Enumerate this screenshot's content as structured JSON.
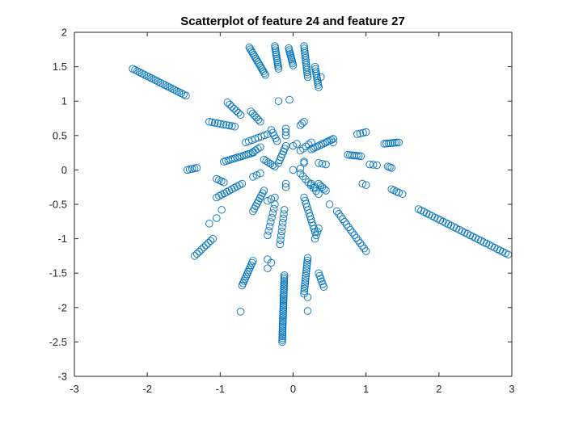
{
  "chart_data": {
    "type": "scatter",
    "title": "Scatterplot of feature 24 and feature 27",
    "xlabel": "",
    "ylabel": "",
    "xlim": [
      -3,
      3
    ],
    "ylim": [
      -3,
      2
    ],
    "xticks": [
      -3,
      -2,
      -1,
      0,
      1,
      2,
      3
    ],
    "yticks": [
      2,
      1.5,
      1,
      0.5,
      0,
      -0.5,
      -1,
      -1.5,
      -2,
      -2.5,
      -3
    ],
    "xtick_labels": [
      "-3",
      "-2",
      "-1",
      "0",
      "1",
      "2",
      "3"
    ],
    "ytick_labels": [
      "2",
      "1.5",
      "1",
      "0.5",
      "0",
      "-0.5",
      "-1",
      "-1.5",
      "-2",
      "-2.5",
      "-3"
    ],
    "grid": false,
    "marker": "open-circle",
    "marker_color": "#0072BD",
    "segments": [
      {
        "from": [
          -2.2,
          1.47
        ],
        "to": [
          -1.47,
          1.08
        ],
        "n": 24
      },
      {
        "from": [
          1.72,
          -0.57
        ],
        "to": [
          2.95,
          -1.23
        ],
        "n": 34
      },
      {
        "from": [
          -0.6,
          1.78
        ],
        "to": [
          -0.38,
          1.38
        ],
        "n": 16
      },
      {
        "from": [
          -0.25,
          1.8
        ],
        "to": [
          -0.2,
          1.47
        ],
        "n": 12
      },
      {
        "from": [
          -0.06,
          1.77
        ],
        "to": [
          0.0,
          1.52
        ],
        "n": 10
      },
      {
        "from": [
          0.15,
          1.8
        ],
        "to": [
          0.2,
          1.35
        ],
        "n": 14
      },
      {
        "from": [
          0.3,
          1.5
        ],
        "to": [
          0.35,
          1.2
        ],
        "n": 10
      },
      {
        "from": [
          -1.15,
          0.7
        ],
        "to": [
          -0.8,
          0.63
        ],
        "n": 10
      },
      {
        "from": [
          -0.9,
          0.98
        ],
        "to": [
          -0.72,
          0.8
        ],
        "n": 7
      },
      {
        "from": [
          -0.58,
          0.85
        ],
        "to": [
          -0.45,
          0.7
        ],
        "n": 6
      },
      {
        "from": [
          -0.65,
          0.4
        ],
        "to": [
          -0.35,
          0.52
        ],
        "n": 8
      },
      {
        "from": [
          -0.55,
          0.26
        ],
        "to": [
          -0.45,
          0.33
        ],
        "n": 4
      },
      {
        "from": [
          -0.3,
          0.58
        ],
        "to": [
          -0.22,
          0.42
        ],
        "n": 5
      },
      {
        "from": [
          -0.1,
          0.6
        ],
        "to": [
          -0.1,
          0.5
        ],
        "n": 3
      },
      {
        "from": [
          0.1,
          0.28
        ],
        "to": [
          0.25,
          0.4
        ],
        "n": 5
      },
      {
        "from": [
          0.1,
          0.65
        ],
        "to": [
          0.15,
          0.7
        ],
        "n": 3
      },
      {
        "from": [
          0.25,
          0.3
        ],
        "to": [
          0.55,
          0.45
        ],
        "n": 12
      },
      {
        "from": [
          0.55,
          0.4
        ],
        "to": [
          0.55,
          0.45
        ],
        "n": 2
      },
      {
        "from": [
          0.88,
          0.52
        ],
        "to": [
          1.0,
          0.55
        ],
        "n": 4
      },
      {
        "from": [
          0.75,
          0.22
        ],
        "to": [
          0.93,
          0.2
        ],
        "n": 7
      },
      {
        "from": [
          1.25,
          0.38
        ],
        "to": [
          1.45,
          0.4
        ],
        "n": 8
      },
      {
        "from": [
          1.05,
          0.08
        ],
        "to": [
          1.15,
          0.07
        ],
        "n": 3
      },
      {
        "from": [
          1.3,
          0.05
        ],
        "to": [
          1.35,
          0.03
        ],
        "n": 3
      },
      {
        "from": [
          1.35,
          -0.28
        ],
        "to": [
          1.45,
          -0.33
        ],
        "n": 4
      },
      {
        "from": [
          1.5,
          -0.35
        ],
        "to": [
          1.5,
          -0.35
        ],
        "n": 1
      },
      {
        "from": [
          0.95,
          -0.2
        ],
        "to": [
          1.0,
          -0.22
        ],
        "n": 2
      },
      {
        "from": [
          -0.95,
          0.12
        ],
        "to": [
          -0.55,
          0.25
        ],
        "n": 14
      },
      {
        "from": [
          -1.45,
          0.0
        ],
        "to": [
          -1.32,
          0.03
        ],
        "n": 5
      },
      {
        "from": [
          -1.05,
          -0.13
        ],
        "to": [
          -0.95,
          -0.18
        ],
        "n": 4
      },
      {
        "from": [
          -1.05,
          -0.4
        ],
        "to": [
          -0.7,
          -0.2
        ],
        "n": 11
      },
      {
        "from": [
          -0.4,
          0.15
        ],
        "to": [
          -0.25,
          0.05
        ],
        "n": 6
      },
      {
        "from": [
          -0.55,
          -0.1
        ],
        "to": [
          -0.45,
          -0.05
        ],
        "n": 3
      },
      {
        "from": [
          -0.2,
          0.1
        ],
        "to": [
          -0.1,
          0.35
        ],
        "n": 7
      },
      {
        "from": [
          0.0,
          0.35
        ],
        "to": [
          0.05,
          0.38
        ],
        "n": 2
      },
      {
        "from": [
          0.1,
          -0.05
        ],
        "to": [
          0.35,
          -0.35
        ],
        "n": 8
      },
      {
        "from": [
          0.15,
          0.1
        ],
        "to": [
          0.15,
          0.12
        ],
        "n": 2
      },
      {
        "from": [
          0.35,
          -0.2
        ],
        "to": [
          0.45,
          -0.3
        ],
        "n": 5
      },
      {
        "from": [
          0.35,
          0.1
        ],
        "to": [
          0.45,
          0.08
        ],
        "n": 3
      },
      {
        "from": [
          0.6,
          -0.6
        ],
        "to": [
          1.0,
          -1.18
        ],
        "n": 16
      },
      {
        "from": [
          -0.55,
          -0.6
        ],
        "to": [
          -0.4,
          -0.3
        ],
        "n": 9
      },
      {
        "from": [
          -0.35,
          -0.45
        ],
        "to": [
          -0.25,
          -0.4
        ],
        "n": 3
      },
      {
        "from": [
          -0.35,
          -0.95
        ],
        "to": [
          -0.25,
          -0.5
        ],
        "n": 8
      },
      {
        "from": [
          -0.18,
          -1.08
        ],
        "to": [
          -0.12,
          -0.58
        ],
        "n": 9
      },
      {
        "from": [
          -0.1,
          -0.2
        ],
        "to": [
          -0.1,
          -0.25
        ],
        "n": 2
      },
      {
        "from": [
          0.15,
          -0.4
        ],
        "to": [
          0.3,
          -0.9
        ],
        "n": 12
      },
      {
        "from": [
          0.25,
          -0.2
        ],
        "to": [
          0.3,
          -0.25
        ],
        "n": 2
      },
      {
        "from": [
          0.5,
          -0.5
        ],
        "to": [
          0.5,
          -0.5
        ],
        "n": 1
      },
      {
        "from": [
          0.3,
          -1.0
        ],
        "to": [
          0.35,
          -0.85
        ],
        "n": 4
      },
      {
        "from": [
          -1.35,
          -1.25
        ],
        "to": [
          -1.1,
          -1.0
        ],
        "n": 9
      },
      {
        "from": [
          -1.15,
          -0.78
        ],
        "to": [
          -1.05,
          -0.7
        ],
        "n": 2
      },
      {
        "from": [
          -0.98,
          -0.58
        ],
        "to": [
          -0.98,
          -0.58
        ],
        "n": 1
      },
      {
        "from": [
          -0.7,
          -1.68
        ],
        "to": [
          -0.55,
          -1.32
        ],
        "n": 12
      },
      {
        "from": [
          -0.35,
          -1.3
        ],
        "to": [
          -0.3,
          -1.35
        ],
        "n": 2
      },
      {
        "from": [
          -0.35,
          -1.43
        ],
        "to": [
          -0.35,
          -1.43
        ],
        "n": 1
      },
      {
        "from": [
          -0.72,
          -2.06
        ],
        "to": [
          -0.72,
          -2.06
        ],
        "n": 1
      },
      {
        "from": [
          -0.15,
          -2.5
        ],
        "to": [
          -0.12,
          -1.53
        ],
        "n": 36
      },
      {
        "from": [
          0.15,
          -1.8
        ],
        "to": [
          0.2,
          -1.28
        ],
        "n": 15
      },
      {
        "from": [
          0.2,
          -1.85
        ],
        "to": [
          0.2,
          -2.05
        ],
        "n": 2
      },
      {
        "from": [
          0.35,
          -1.5
        ],
        "to": [
          0.42,
          -1.7
        ],
        "n": 6
      },
      {
        "from": [
          0.0,
          0.0
        ],
        "to": [
          0.1,
          0.02
        ],
        "n": 2
      },
      {
        "from": [
          -0.2,
          1.0
        ],
        "to": [
          -0.2,
          1.0
        ],
        "n": 1
      },
      {
        "from": [
          -0.05,
          1.02
        ],
        "to": [
          -0.05,
          1.02
        ],
        "n": 1
      },
      {
        "from": [
          0.38,
          1.35
        ],
        "to": [
          0.38,
          1.35
        ],
        "n": 1
      }
    ]
  }
}
